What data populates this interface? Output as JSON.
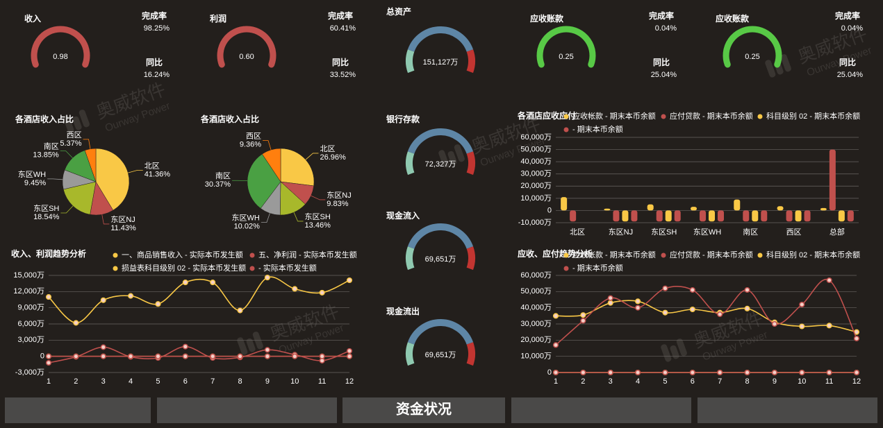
{
  "watermark": {
    "text": "奥威软件",
    "subtext": "Ourway Power"
  },
  "nav": {
    "active": "资金状况"
  },
  "chart_data": [
    {
      "type": "gauge",
      "title": "收入",
      "values": [
        0.98
      ],
      "color": "#c0504d",
      "kpis": [
        {
          "name": "完成率",
          "value": 98.25,
          "label": "98.25%"
        },
        {
          "name": "同比",
          "value": 16.24,
          "label": "16.24%"
        }
      ]
    },
    {
      "type": "gauge",
      "title": "利润",
      "values": [
        0.6
      ],
      "value_labels": [
        "0.60"
      ],
      "color": "#c0504d",
      "kpis": [
        {
          "name": "完成率",
          "value": 60.41,
          "label": "60.41%"
        },
        {
          "name": "同比",
          "value": 33.52,
          "label": "33.52%"
        }
      ]
    },
    {
      "type": "gauge",
      "title": "总资产",
      "values": [
        151127
      ],
      "value_labels": [
        "151,127万"
      ],
      "color": "#f5c542",
      "colors": [
        "#8fc9b0",
        "#5e86a6",
        "#c23531"
      ]
    },
    {
      "type": "gauge",
      "title": "银行存款",
      "values": [
        72327
      ],
      "value_labels": [
        "72,327万"
      ],
      "color": "#f5c542",
      "colors": [
        "#8fc9b0",
        "#5e86a6",
        "#c23531"
      ]
    },
    {
      "type": "gauge",
      "title": "现金流入",
      "values": [
        69651
      ],
      "value_labels": [
        "69,651万"
      ],
      "color": "#f5c542",
      "colors": [
        "#8fc9b0",
        "#5e86a6",
        "#c23531"
      ]
    },
    {
      "type": "gauge",
      "title": "现金流出",
      "values": [
        69651
      ],
      "value_labels": [
        "69,651万"
      ],
      "color": "#f5c542",
      "colors": [
        "#8fc9b0",
        "#5e86a6",
        "#c23531"
      ]
    },
    {
      "type": "gauge",
      "title": "应收账款",
      "values": [
        0.25
      ],
      "color": "#58c946",
      "kpis": [
        {
          "name": "完成率",
          "value": 0.04,
          "label": "0.04%"
        },
        {
          "name": "同比",
          "value": 25.04,
          "label": "25.04%"
        }
      ]
    },
    {
      "type": "gauge",
      "title": "应收账款",
      "values": [
        0.25
      ],
      "color": "#58c946",
      "kpis": [
        {
          "name": "完成率",
          "value": 0.04,
          "label": "0.04%"
        },
        {
          "name": "同比",
          "value": 25.04,
          "label": "25.04%"
        }
      ]
    },
    {
      "type": "pie",
      "title": "各酒店收入占比",
      "categories": [
        "北区",
        "东区NJ",
        "东区SH",
        "东区WH",
        "南区",
        "西区"
      ],
      "values": [
        41.36,
        11.43,
        18.54,
        9.45,
        13.85,
        5.37
      ],
      "value_labels": [
        "41.36%",
        "11.43%",
        "18.54%",
        "9.45%",
        "13.85%",
        "5.37%"
      ],
      "colors": [
        "#f9c846",
        "#c0504d",
        "#a8b82b",
        "#9a9a9a",
        "#4aa043",
        "#ff7f0e"
      ]
    },
    {
      "type": "pie",
      "title": "各酒店收入占比",
      "categories": [
        "北区",
        "东区NJ",
        "东区SH",
        "东区WH",
        "南区",
        "西区"
      ],
      "values": [
        26.96,
        9.83,
        13.46,
        10.02,
        30.37,
        9.36
      ],
      "value_labels": [
        "26.96%",
        "9.83%",
        "13.46%",
        "10.02%",
        "30.37%",
        "9.36%"
      ],
      "colors": [
        "#f9c846",
        "#c0504d",
        "#a8b82b",
        "#9a9a9a",
        "#4aa043",
        "#ff7f0e"
      ]
    },
    {
      "type": "bar",
      "title": "各酒店应收应付",
      "categories": [
        "北区",
        "东区NJ",
        "东区SH",
        "东区WH",
        "南区",
        "西区",
        "总部"
      ],
      "series": [
        {
          "name": "应收帐款 - 期末本币余额",
          "color": "#f9c846",
          "values": [
            11000,
            1500,
            5000,
            3000,
            9000,
            3500,
            2000
          ]
        },
        {
          "name": "应付贷款 - 期末本币余额",
          "color": "#c0504d",
          "values": [
            -9000,
            -9000,
            -9000,
            -9000,
            -9000,
            -9000,
            50000
          ]
        },
        {
          "name": "科目级别 02 - 期末本币余额",
          "color": "#f9c846",
          "values": [
            0,
            -9000,
            -9000,
            -9000,
            -9000,
            -9000,
            -9000
          ]
        },
        {
          "name": "- 期末本币余额",
          "color": "#c0504d",
          "values": [
            0,
            -9000,
            -9000,
            -9000,
            -9000,
            -9000,
            -9000
          ]
        }
      ],
      "ylim": [
        -10000,
        60000
      ],
      "yticks": [
        {
          "value": -10000,
          "label": "-10,000万"
        },
        0,
        {
          "value": 10000,
          "label": "10,000万"
        },
        {
          "value": 20000,
          "label": "20,000万"
        },
        {
          "value": 30000,
          "label": "30,000万"
        },
        {
          "value": 40000,
          "label": "40,000万"
        },
        {
          "value": 50000,
          "label": "50,000万"
        },
        {
          "value": 60000,
          "label": "60,000万"
        }
      ],
      "grid": true
    },
    {
      "type": "line",
      "title": "收入、利润趋势分析",
      "categories": [
        "1",
        "2",
        "3",
        "4",
        "5",
        "6",
        "7",
        "8",
        "9",
        "10",
        "11",
        "12"
      ],
      "series": [
        {
          "name": "一、商品销售收入 - 实际本币发生额",
          "color": "#f9c846",
          "values": [
            11000,
            6200,
            10400,
            11200,
            9700,
            13700,
            13700,
            8500,
            14600,
            12500,
            11800,
            14100
          ]
        },
        {
          "name": "五、净利润 - 实际本币发生额",
          "color": "#c0504d",
          "values": [
            -1200,
            -100,
            1700,
            -100,
            -300,
            1800,
            -300,
            -200,
            1200,
            300,
            -800,
            1000
          ]
        },
        {
          "name": "损益表科目级别 02 - 实际本币发生额",
          "color": "#f9c846",
          "values": [
            0,
            0,
            0,
            0,
            0,
            0,
            0,
            0,
            0,
            0,
            0,
            0
          ]
        },
        {
          "name": "- 实际本币发生额",
          "color": "#c0504d",
          "values": [
            0,
            0,
            0,
            0,
            0,
            0,
            0,
            0,
            0,
            0,
            0,
            0
          ]
        }
      ],
      "ylim": [
        -3000,
        15000
      ],
      "yticks": [
        {
          "value": -3000,
          "label": "-3,000万"
        },
        0,
        {
          "value": 3000,
          "label": "3,000万"
        },
        {
          "value": 6000,
          "label": "6,000万"
        },
        {
          "value": 9000,
          "label": "9,000万"
        },
        {
          "value": 12000,
          "label": "12,000万"
        },
        {
          "value": 15000,
          "label": "15,000万"
        }
      ],
      "grid": true
    },
    {
      "type": "line",
      "title": "应收、应付趋势分析",
      "categories": [
        "1",
        "2",
        "3",
        "4",
        "5",
        "6",
        "7",
        "8",
        "9",
        "10",
        "11",
        "12"
      ],
      "series": [
        {
          "name": "应收帐款 - 期末本币余额",
          "color": "#f9c846",
          "values": [
            35000,
            35500,
            43000,
            44000,
            37000,
            39000,
            37000,
            39500,
            31000,
            28500,
            29000,
            25000
          ]
        },
        {
          "name": "应付贷款 - 期末本币余额",
          "color": "#c0504d",
          "values": [
            17000,
            32000,
            46000,
            40000,
            52000,
            51000,
            36000,
            51000,
            30000,
            42000,
            57000,
            21000
          ]
        },
        {
          "name": "科目级别 02 - 期末本币余额",
          "color": "#f9c846",
          "values": [
            0,
            0,
            0,
            0,
            0,
            0,
            0,
            0,
            0,
            0,
            0,
            0
          ]
        },
        {
          "name": "- 期末本币余额",
          "color": "#c0504d",
          "values": [
            0,
            0,
            0,
            0,
            0,
            0,
            0,
            0,
            0,
            0,
            0,
            0
          ]
        }
      ],
      "ylim": [
        0,
        60000
      ],
      "yticks": [
        0,
        {
          "value": 10000,
          "label": "10,000万"
        },
        {
          "value": 20000,
          "label": "20,000万"
        },
        {
          "value": 30000,
          "label": "30,000万"
        },
        {
          "value": 40000,
          "label": "40,000万"
        },
        {
          "value": 50000,
          "label": "50,000万"
        },
        {
          "value": 60000,
          "label": "60,000万"
        }
      ],
      "grid": true
    }
  ]
}
